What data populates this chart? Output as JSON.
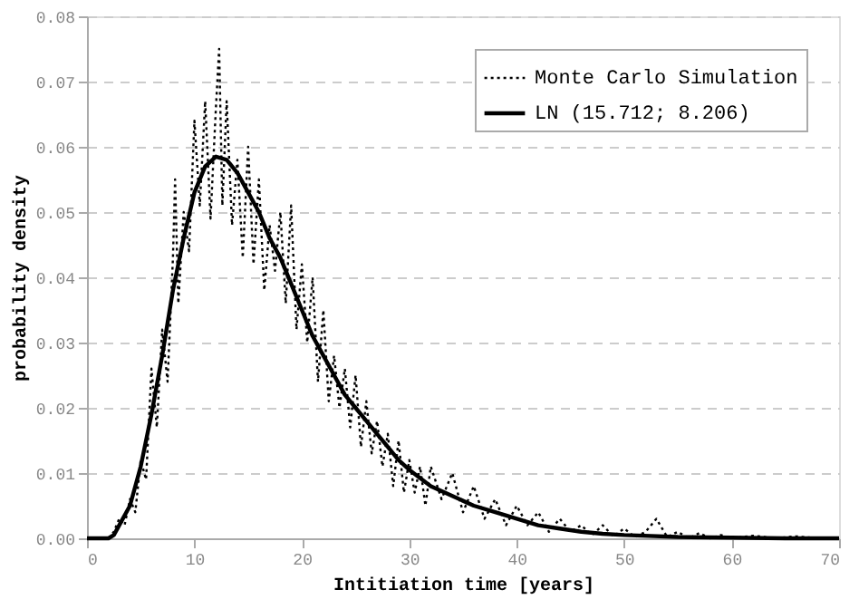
{
  "chart_data": {
    "type": "line",
    "xlabel": "Intitiation time [years]",
    "ylabel": "probability density",
    "xlim": [
      0,
      70
    ],
    "xticks": [
      0,
      10,
      20,
      30,
      40,
      50,
      60,
      70
    ],
    "ylim": [
      0,
      0.08
    ],
    "yticks": [
      {
        "value": 0,
        "label": "0.00"
      },
      {
        "value": 0.01,
        "label": "0.01"
      },
      {
        "value": 0.02,
        "label": "0.02"
      },
      {
        "value": 0.03,
        "label": "0.03"
      },
      {
        "value": 0.04,
        "label": "0.04"
      },
      {
        "value": 0.05,
        "label": "0.05"
      },
      {
        "value": 0.06,
        "label": "0.06"
      },
      {
        "value": 0.07,
        "label": "0.07"
      },
      {
        "value": 0.08,
        "label": "0.08"
      }
    ],
    "grid": "y",
    "legend": "top right",
    "marker": "none",
    "series": [
      {
        "name": "Monte Carlo Simulation",
        "color": "#000000",
        "line_style": "dotted",
        "x": [
          2,
          2.5,
          3,
          3.5,
          4,
          4.5,
          5,
          5.5,
          6,
          6.5,
          7,
          7.5,
          8,
          8.2,
          8.5,
          9,
          9.5,
          10,
          10.5,
          11,
          11.5,
          12,
          12.3,
          12.6,
          13,
          13.5,
          14,
          14.5,
          15,
          15.5,
          16,
          16.5,
          17,
          17.5,
          18,
          18.5,
          19,
          19.5,
          20,
          20.5,
          21,
          21.5,
          22,
          22.5,
          23,
          23.5,
          24,
          24.5,
          25,
          25.5,
          26,
          26.5,
          27,
          27.5,
          28,
          28.5,
          29,
          29.5,
          30,
          30.5,
          31,
          31.5,
          32,
          33,
          34,
          35,
          36,
          37,
          38,
          39,
          40,
          41,
          42,
          43,
          44,
          45,
          46,
          47,
          48,
          49,
          50,
          51,
          52,
          53,
          54,
          55,
          56,
          57,
          58,
          59,
          60,
          62,
          64,
          66,
          68,
          70
        ],
        "values": [
          0,
          0.001,
          0.003,
          0.002,
          0.006,
          0.004,
          0.012,
          0.009,
          0.026,
          0.017,
          0.032,
          0.024,
          0.043,
          0.055,
          0.036,
          0.05,
          0.044,
          0.064,
          0.051,
          0.067,
          0.049,
          0.066,
          0.075,
          0.051,
          0.067,
          0.048,
          0.058,
          0.043,
          0.06,
          0.042,
          0.055,
          0.038,
          0.048,
          0.041,
          0.05,
          0.036,
          0.051,
          0.032,
          0.042,
          0.03,
          0.04,
          0.024,
          0.035,
          0.021,
          0.028,
          0.02,
          0.026,
          0.017,
          0.025,
          0.014,
          0.021,
          0.013,
          0.018,
          0.011,
          0.016,
          0.008,
          0.015,
          0.007,
          0.012,
          0.007,
          0.011,
          0.005,
          0.011,
          0.006,
          0.01,
          0.004,
          0.008,
          0.003,
          0.006,
          0.002,
          0.005,
          0.002,
          0.004,
          0.001,
          0.003,
          0.001,
          0.002,
          0.0005,
          0.002,
          0.0003,
          0.0015,
          0.0002,
          0.001,
          0.003,
          0.0002,
          0.001,
          0,
          0.0008,
          0,
          0.0005,
          0,
          0.0004,
          0,
          0.0003,
          0,
          0
        ]
      },
      {
        "name": "LN (15.712; 8.206)",
        "color": "#000000",
        "line_style": "solid",
        "x": [
          0,
          2,
          2.5,
          3,
          4,
          5,
          6,
          7,
          8,
          9,
          10,
          11,
          12,
          13,
          14,
          15,
          16,
          17,
          18,
          19,
          20,
          21,
          22,
          23,
          24,
          25,
          26,
          27,
          28,
          29,
          30,
          32,
          34,
          36,
          38,
          40,
          42,
          44,
          46,
          48,
          50,
          55,
          60,
          65,
          70
        ],
        "values": [
          0,
          0,
          0.0005,
          0.002,
          0.005,
          0.011,
          0.019,
          0.028,
          0.038,
          0.046,
          0.053,
          0.057,
          0.0585,
          0.058,
          0.056,
          0.053,
          0.05,
          0.046,
          0.043,
          0.039,
          0.035,
          0.031,
          0.028,
          0.025,
          0.022,
          0.02,
          0.018,
          0.016,
          0.014,
          0.012,
          0.0105,
          0.008,
          0.0065,
          0.005,
          0.004,
          0.003,
          0.002,
          0.0015,
          0.001,
          0.0007,
          0.0005,
          0.0002,
          0.0001,
          0,
          0
        ]
      }
    ]
  }
}
